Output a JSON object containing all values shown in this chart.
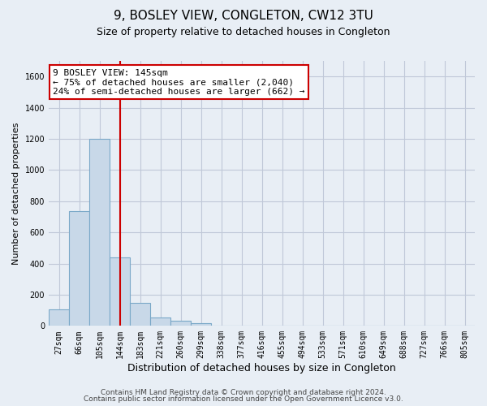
{
  "title": "9, BOSLEY VIEW, CONGLETON, CW12 3TU",
  "subtitle": "Size of property relative to detached houses in Congleton",
  "xlabel": "Distribution of detached houses by size in Congleton",
  "ylabel": "Number of detached properties",
  "footer1": "Contains HM Land Registry data © Crown copyright and database right 2024.",
  "footer2": "Contains public sector information licensed under the Open Government Licence v3.0.",
  "bar_labels": [
    "27sqm",
    "66sqm",
    "105sqm",
    "144sqm",
    "183sqm",
    "221sqm",
    "260sqm",
    "299sqm",
    "338sqm",
    "377sqm",
    "416sqm",
    "455sqm",
    "494sqm",
    "533sqm",
    "571sqm",
    "610sqm",
    "649sqm",
    "688sqm",
    "727sqm",
    "766sqm",
    "805sqm"
  ],
  "bar_values": [
    105,
    735,
    1200,
    440,
    145,
    55,
    35,
    15,
    0,
    0,
    0,
    0,
    0,
    0,
    0,
    0,
    0,
    0,
    0,
    0,
    0
  ],
  "bar_color": "#c8d8e8",
  "bar_edge_color": "#7aa8c8",
  "vline_color": "#cc0000",
  "vline_x_index": 3.0,
  "annotation_text1": "9 BOSLEY VIEW: 145sqm",
  "annotation_text2": "← 75% of detached houses are smaller (2,040)",
  "annotation_text3": "24% of semi-detached houses are larger (662) →",
  "annotation_box_color": "#ffffff",
  "annotation_border_color": "#cc0000",
  "ylim": [
    0,
    1700
  ],
  "yticks": [
    0,
    200,
    400,
    600,
    800,
    1000,
    1200,
    1400,
    1600
  ],
  "grid_color": "#c0c8d8",
  "bg_color": "#e8eef5",
  "title_fontsize": 11,
  "subtitle_fontsize": 9,
  "axis_label_fontsize": 8,
  "tick_fontsize": 7,
  "annotation_fontsize": 8,
  "footer_fontsize": 6.5
}
